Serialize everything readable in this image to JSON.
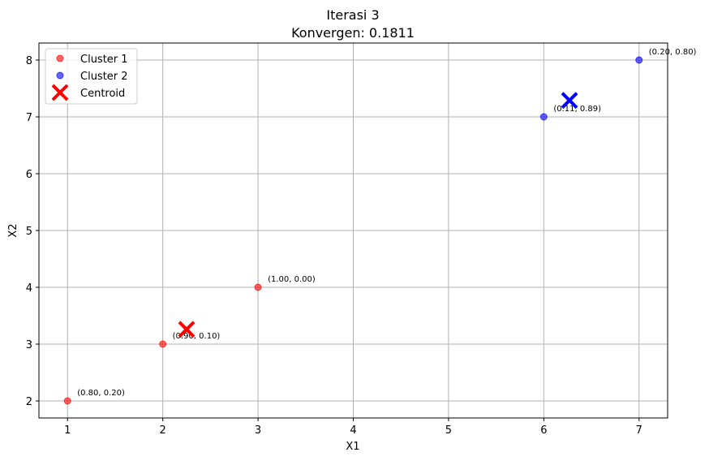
{
  "chart_data": {
    "type": "scatter",
    "title": "Iterasi 3",
    "subtitle": "Konvergen: 0.1811",
    "xlabel": "X1",
    "ylabel": "X2",
    "xlim": [
      0.7,
      7.3
    ],
    "ylim": [
      1.7,
      8.3
    ],
    "xticks": [
      1,
      2,
      3,
      4,
      5,
      6,
      7
    ],
    "yticks": [
      2,
      3,
      4,
      5,
      6,
      7,
      8
    ],
    "grid": true,
    "legend_position": "top-left",
    "series": [
      {
        "name": "Cluster 1",
        "color": "#ff0000",
        "points": [
          {
            "x": 1,
            "y": 2,
            "label": "(0.80, 0.20)"
          },
          {
            "x": 2,
            "y": 3,
            "label": "(0.90, 0.10)"
          },
          {
            "x": 3,
            "y": 4,
            "label": "(1.00, 0.00)"
          }
        ]
      },
      {
        "name": "Cluster 2",
        "color": "#0000ff",
        "points": [
          {
            "x": 6,
            "y": 7,
            "label": "(0.11, 0.89)"
          },
          {
            "x": 7,
            "y": 8,
            "label": "(0.20, 0.80)"
          }
        ]
      }
    ],
    "centroids": {
      "name": "Centroid",
      "points": [
        {
          "x": 2.25,
          "y": 3.26,
          "color": "#ff0000"
        },
        {
          "x": 6.27,
          "y": 7.29,
          "color": "#0000ff"
        }
      ]
    }
  }
}
